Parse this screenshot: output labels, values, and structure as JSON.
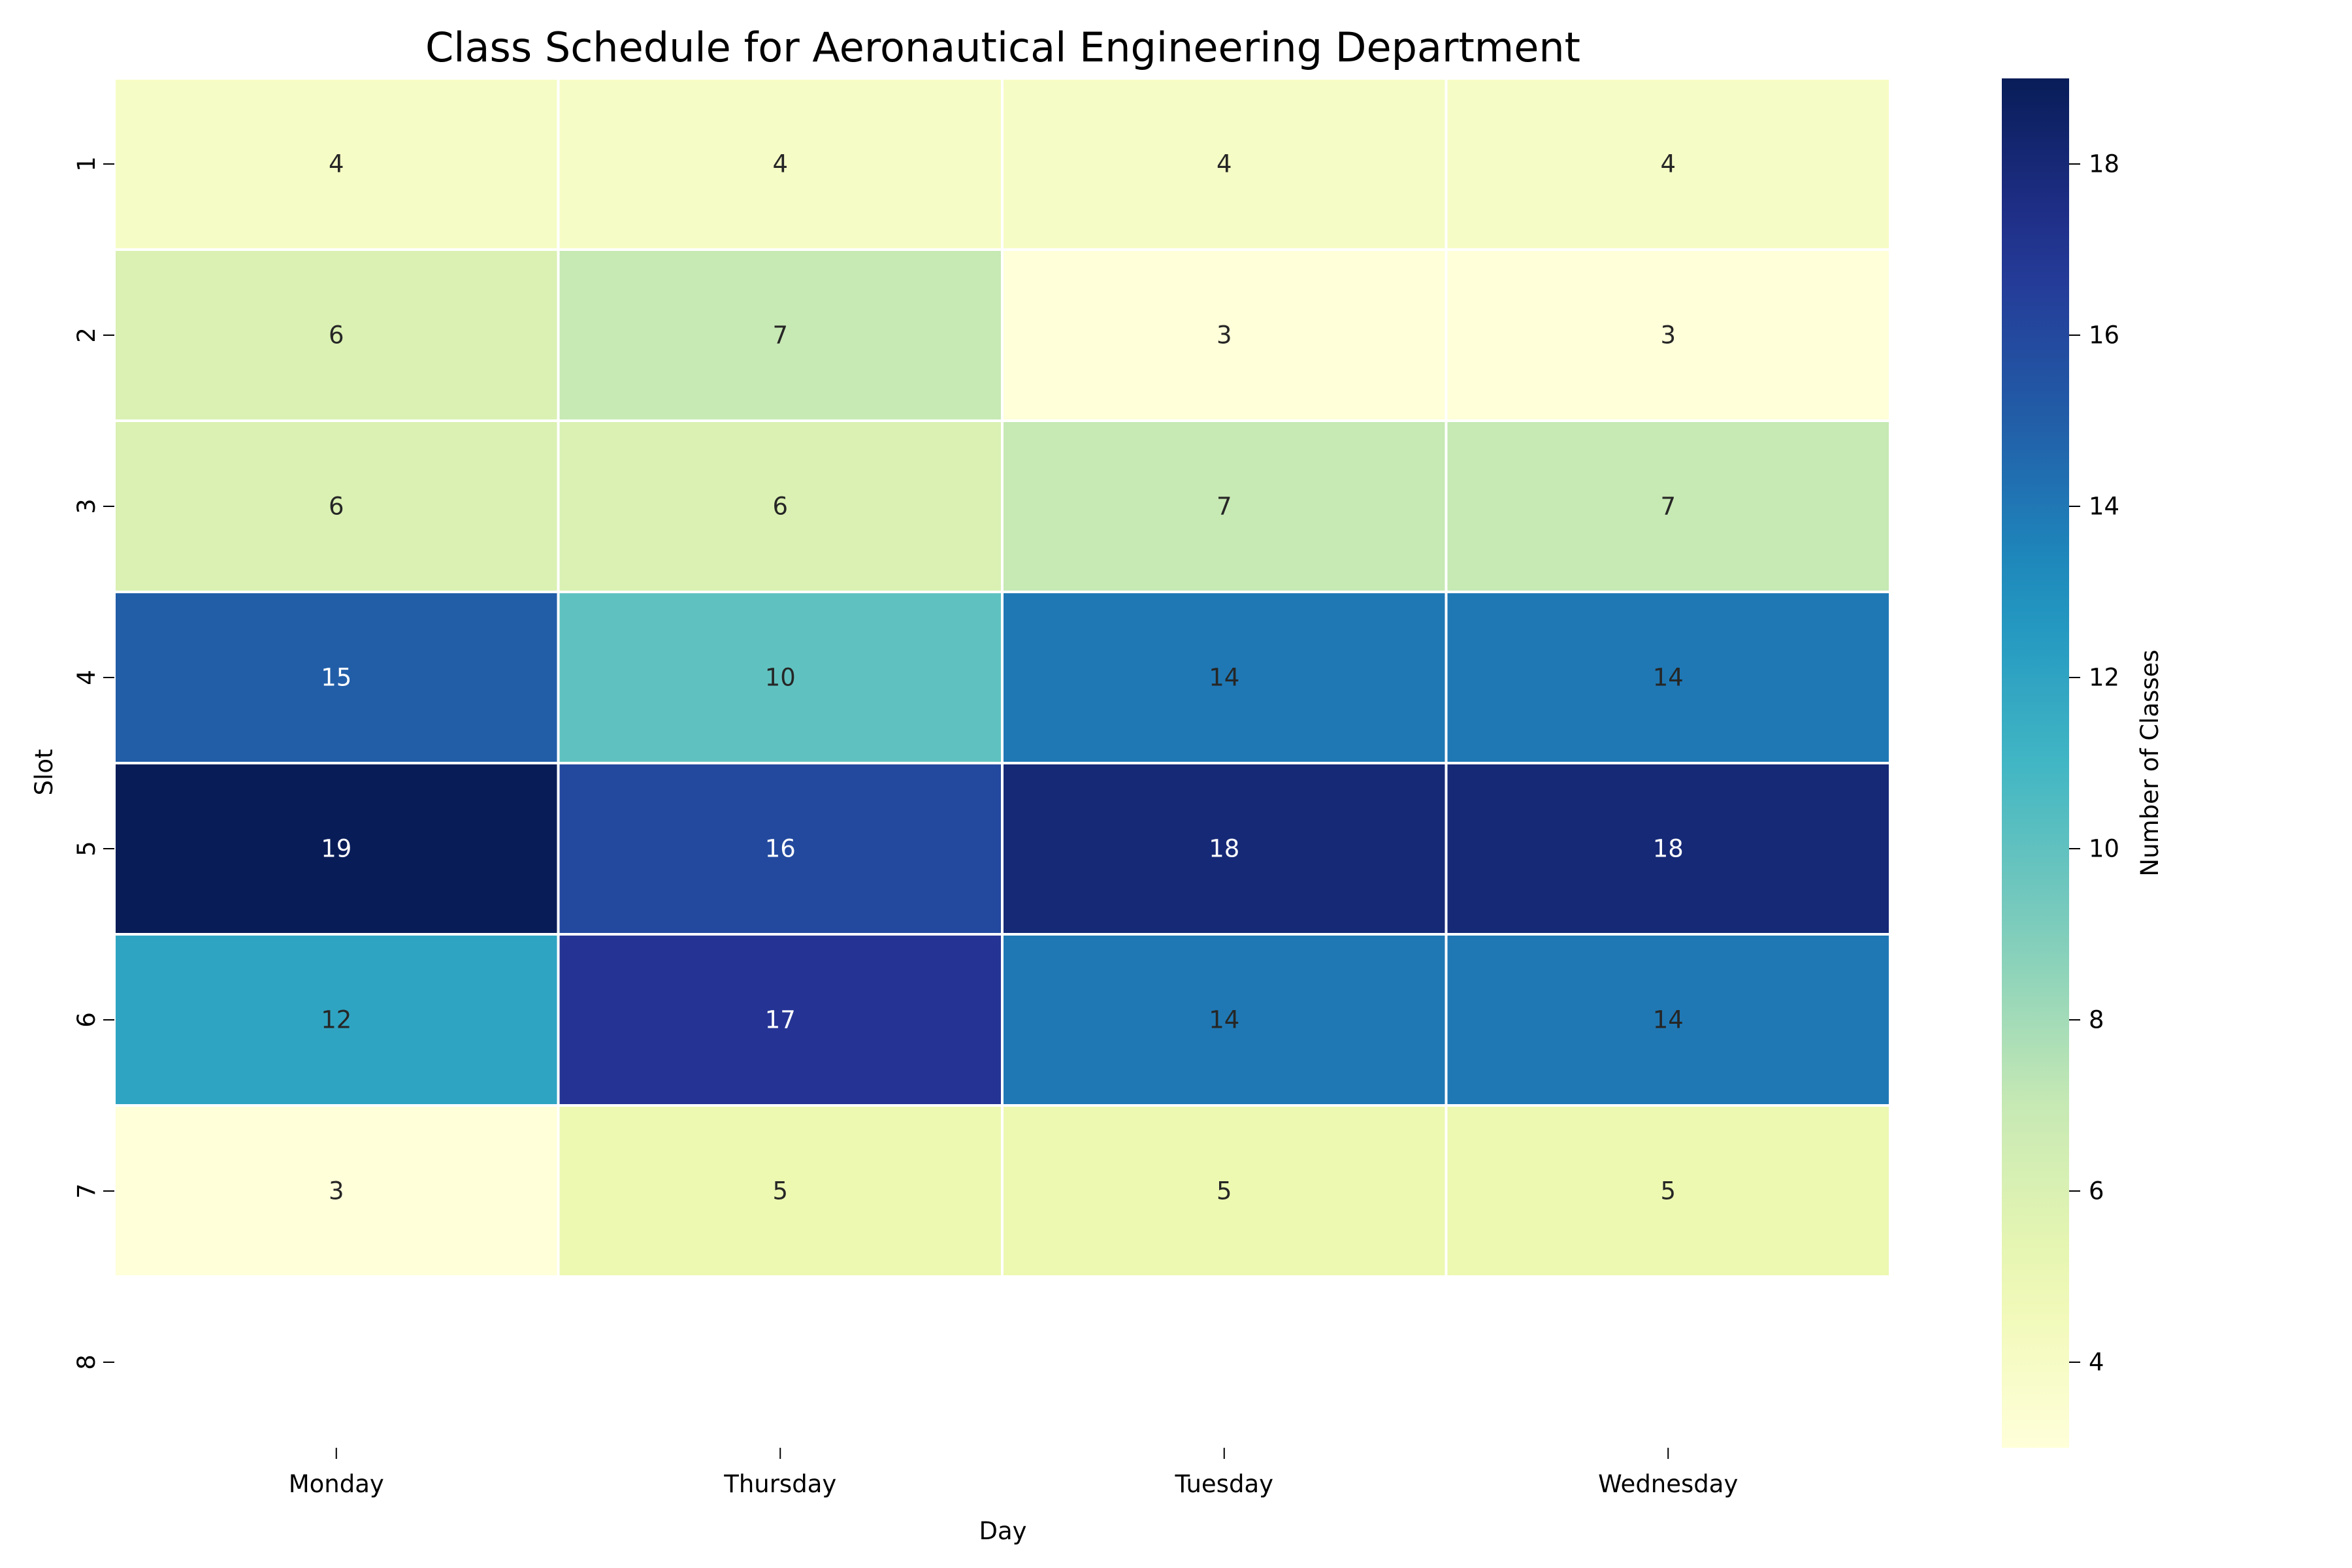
{
  "chart_data": {
    "type": "heatmap",
    "title": "Class Schedule for Aeronautical Engineering Department",
    "xlabel": "Day",
    "ylabel": "Slot",
    "colorbar_label": "Number of Classes",
    "colormap": "YlGnBu",
    "x_categories": [
      "Monday",
      "Thursday",
      "Tuesday",
      "Wednesday"
    ],
    "y_categories": [
      "1",
      "2",
      "3",
      "4",
      "5",
      "6",
      "7",
      "8"
    ],
    "values": [
      [
        4,
        4,
        4,
        4
      ],
      [
        6,
        7,
        3,
        3
      ],
      [
        6,
        6,
        7,
        7
      ],
      [
        15,
        10,
        14,
        14
      ],
      [
        19,
        16,
        18,
        18
      ],
      [
        12,
        17,
        14,
        14
      ],
      [
        3,
        5,
        5,
        5
      ],
      [
        null,
        null,
        null,
        null
      ]
    ],
    "vmin": 3,
    "vmax": 19,
    "colorbar_ticks": [
      4,
      6,
      8,
      10,
      12,
      14,
      16,
      18
    ],
    "colorbar_tick_labels": [
      "4",
      "6",
      "8",
      "10",
      "12",
      "14",
      "16",
      "18"
    ]
  }
}
